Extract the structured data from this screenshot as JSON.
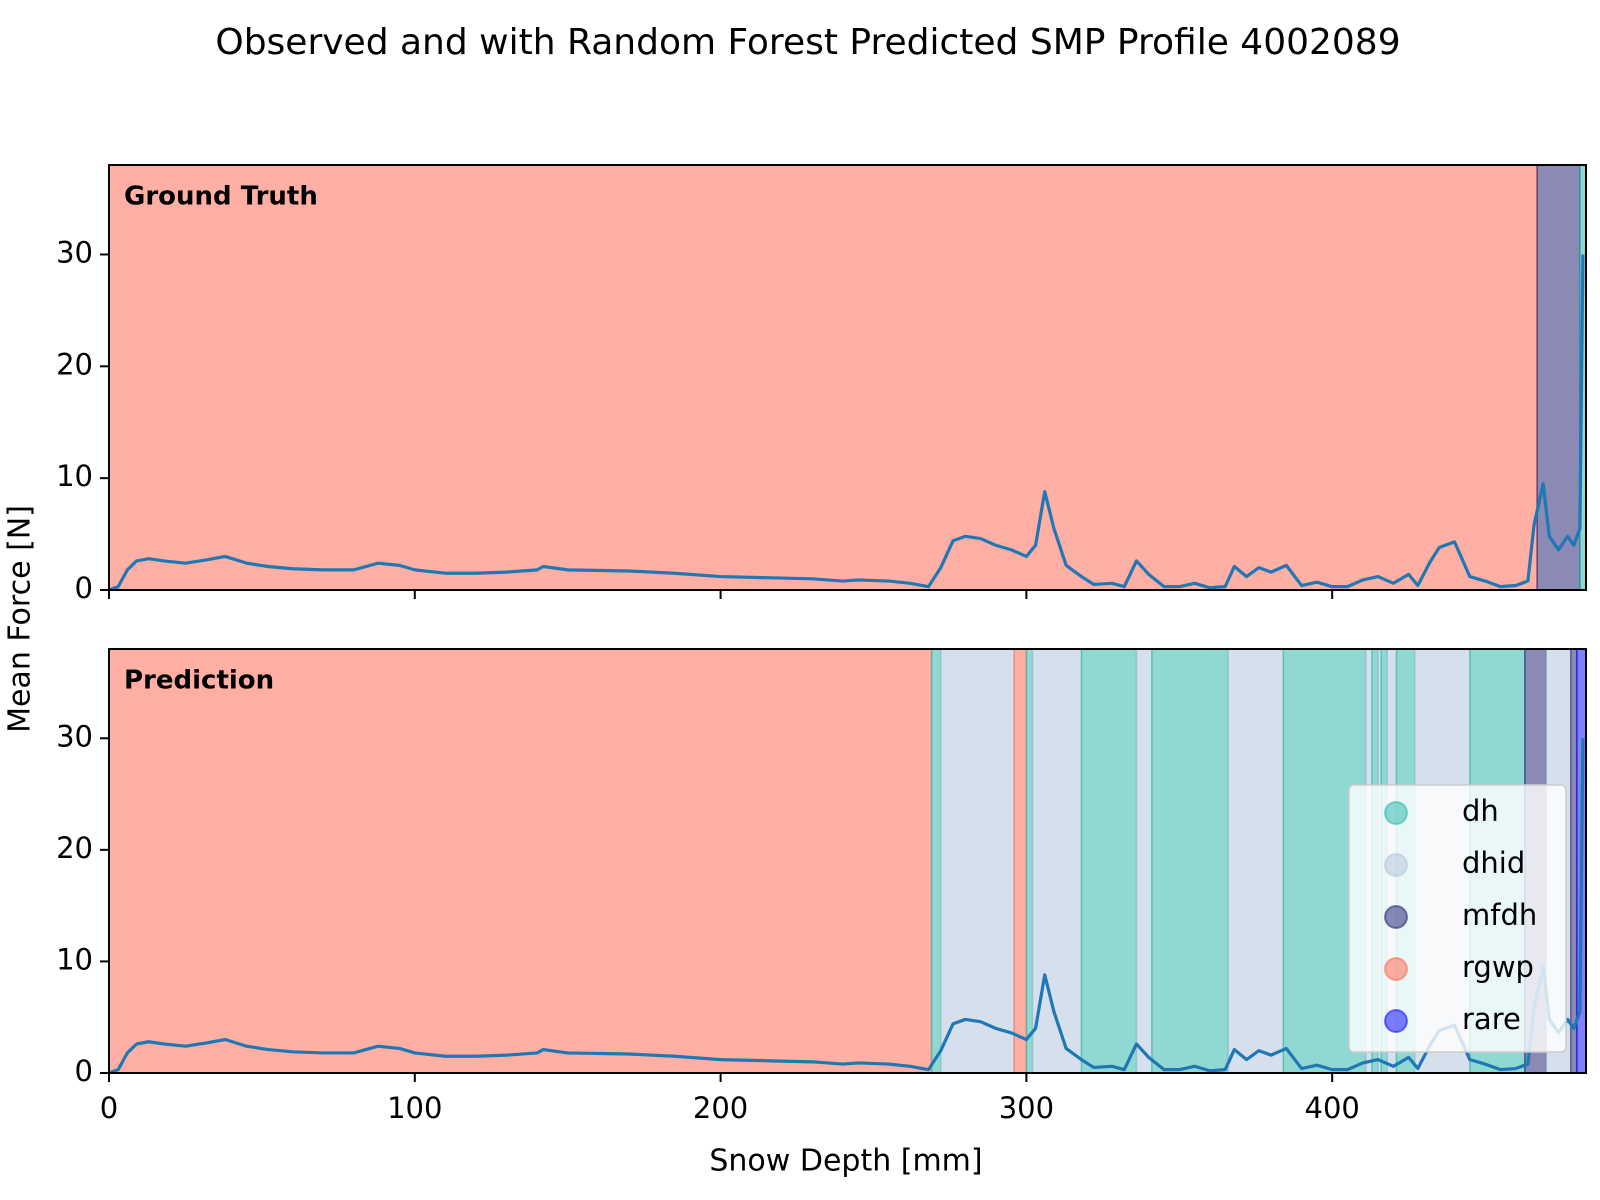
{
  "title": "Observed and with Random Forest Predicted SMP Profile 4002089",
  "xlabel": "Snow Depth [mm]",
  "ylabel": "Mean Force [N]",
  "legend": {
    "position": "lower right",
    "classes": [
      {
        "name": "dh",
        "color": "#1fb3a5"
      },
      {
        "name": "dhid",
        "color": "#adc1d9"
      },
      {
        "name": "mfdh",
        "color": "#15156b"
      },
      {
        "name": "rgwp",
        "color": "#ff5f47"
      },
      {
        "name": "rare",
        "color": "#0000ff"
      }
    ]
  },
  "chart_data": [
    {
      "type": "line",
      "title": "Ground Truth",
      "xlim": [
        0,
        483
      ],
      "ylim": [
        0,
        38
      ],
      "xticks": [
        0,
        100,
        200,
        300,
        400
      ],
      "yticks": [
        0,
        10,
        20,
        30
      ],
      "spans": [
        {
          "start": 0,
          "end": 467,
          "class": 3
        },
        {
          "start": 467,
          "end": 481,
          "class": 2
        },
        {
          "start": 481,
          "end": 483,
          "class": 0
        }
      ],
      "x": [
        0,
        3,
        6,
        9,
        13,
        18,
        25,
        32,
        38,
        45,
        52,
        60,
        70,
        80,
        88,
        95,
        100,
        110,
        120,
        130,
        140,
        142,
        150,
        170,
        185,
        200,
        215,
        230,
        240,
        245,
        255,
        262,
        268,
        272,
        276,
        280,
        285,
        290,
        295,
        300,
        303,
        306,
        309,
        313,
        318,
        322,
        328,
        332,
        336,
        340,
        345,
        350,
        355,
        360,
        365,
        368,
        372,
        376,
        380,
        385,
        390,
        395,
        400,
        405,
        410,
        415,
        420,
        425,
        428,
        432,
        435,
        440,
        445,
        450,
        455,
        460,
        464,
        466,
        469,
        471,
        474,
        477,
        479,
        481,
        482
      ],
      "series": [
        {
          "color": "#1f77b4",
          "values": [
            0,
            0.3,
            1.8,
            2.6,
            2.8,
            2.6,
            2.4,
            2.7,
            3.0,
            2.4,
            2.1,
            1.9,
            1.8,
            1.8,
            2.4,
            2.2,
            1.8,
            1.5,
            1.5,
            1.6,
            1.8,
            2.1,
            1.8,
            1.7,
            1.5,
            1.2,
            1.1,
            1.0,
            0.8,
            0.9,
            0.8,
            0.6,
            0.3,
            2.0,
            4.4,
            4.8,
            4.6,
            4.0,
            3.6,
            3.0,
            4.0,
            8.8,
            5.5,
            2.2,
            1.2,
            0.5,
            0.6,
            0.3,
            2.6,
            1.4,
            0.3,
            0.3,
            0.6,
            0.2,
            0.3,
            2.1,
            1.2,
            2.0,
            1.6,
            2.2,
            0.4,
            0.7,
            0.3,
            0.3,
            0.9,
            1.2,
            0.6,
            1.4,
            0.4,
            2.5,
            3.8,
            4.3,
            1.2,
            0.8,
            0.3,
            0.4,
            0.8,
            5.8,
            9.5,
            4.8,
            3.6,
            4.8,
            4.0,
            5.5,
            30
          ]
        }
      ]
    },
    {
      "type": "line",
      "title": "Prediction",
      "xlim": [
        0,
        483
      ],
      "ylim": [
        0,
        38
      ],
      "xticks": [
        0,
        100,
        200,
        300,
        400
      ],
      "yticks": [
        0,
        10,
        20,
        30
      ],
      "spans": [
        {
          "start": 0,
          "end": 269,
          "class": 3
        },
        {
          "start": 269,
          "end": 272,
          "class": 0
        },
        {
          "start": 272,
          "end": 296,
          "class": 1
        },
        {
          "start": 296,
          "end": 300,
          "class": 3
        },
        {
          "start": 300,
          "end": 302,
          "class": 0
        },
        {
          "start": 302,
          "end": 318,
          "class": 1
        },
        {
          "start": 318,
          "end": 336,
          "class": 0
        },
        {
          "start": 336,
          "end": 341,
          "class": 1
        },
        {
          "start": 341,
          "end": 366,
          "class": 0
        },
        {
          "start": 366,
          "end": 384,
          "class": 1
        },
        {
          "start": 384,
          "end": 411,
          "class": 0
        },
        {
          "start": 411,
          "end": 413,
          "class": 1
        },
        {
          "start": 413,
          "end": 415,
          "class": 0
        },
        {
          "start": 415,
          "end": 416,
          "class": 1
        },
        {
          "start": 416,
          "end": 418,
          "class": 0
        },
        {
          "start": 418,
          "end": 421,
          "class": 1
        },
        {
          "start": 421,
          "end": 427,
          "class": 0
        },
        {
          "start": 427,
          "end": 445,
          "class": 1
        },
        {
          "start": 445,
          "end": 463,
          "class": 0
        },
        {
          "start": 463,
          "end": 470,
          "class": 2
        },
        {
          "start": 470,
          "end": 478,
          "class": 1
        },
        {
          "start": 478,
          "end": 480,
          "class": 2
        },
        {
          "start": 480,
          "end": 483,
          "class": 4
        }
      ],
      "x": [
        0,
        3,
        6,
        9,
        13,
        18,
        25,
        32,
        38,
        45,
        52,
        60,
        70,
        80,
        88,
        95,
        100,
        110,
        120,
        130,
        140,
        142,
        150,
        170,
        185,
        200,
        215,
        230,
        240,
        245,
        255,
        262,
        268,
        272,
        276,
        280,
        285,
        290,
        295,
        300,
        303,
        306,
        309,
        313,
        318,
        322,
        328,
        332,
        336,
        340,
        345,
        350,
        355,
        360,
        365,
        368,
        372,
        376,
        380,
        385,
        390,
        395,
        400,
        405,
        410,
        415,
        420,
        425,
        428,
        432,
        435,
        440,
        445,
        450,
        455,
        460,
        464,
        466,
        469,
        471,
        474,
        477,
        479,
        481,
        482
      ],
      "series": [
        {
          "color": "#1f77b4",
          "values": [
            0,
            0.3,
            1.8,
            2.6,
            2.8,
            2.6,
            2.4,
            2.7,
            3.0,
            2.4,
            2.1,
            1.9,
            1.8,
            1.8,
            2.4,
            2.2,
            1.8,
            1.5,
            1.5,
            1.6,
            1.8,
            2.1,
            1.8,
            1.7,
            1.5,
            1.2,
            1.1,
            1.0,
            0.8,
            0.9,
            0.8,
            0.6,
            0.3,
            2.0,
            4.4,
            4.8,
            4.6,
            4.0,
            3.6,
            3.0,
            4.0,
            8.8,
            5.5,
            2.2,
            1.2,
            0.5,
            0.6,
            0.3,
            2.6,
            1.4,
            0.3,
            0.3,
            0.6,
            0.2,
            0.3,
            2.1,
            1.2,
            2.0,
            1.6,
            2.2,
            0.4,
            0.7,
            0.3,
            0.3,
            0.9,
            1.2,
            0.6,
            1.4,
            0.4,
            2.5,
            3.8,
            4.3,
            1.2,
            0.8,
            0.3,
            0.4,
            0.8,
            5.8,
            9.5,
            4.8,
            3.6,
            4.8,
            4.0,
            5.5,
            30
          ]
        }
      ]
    }
  ]
}
